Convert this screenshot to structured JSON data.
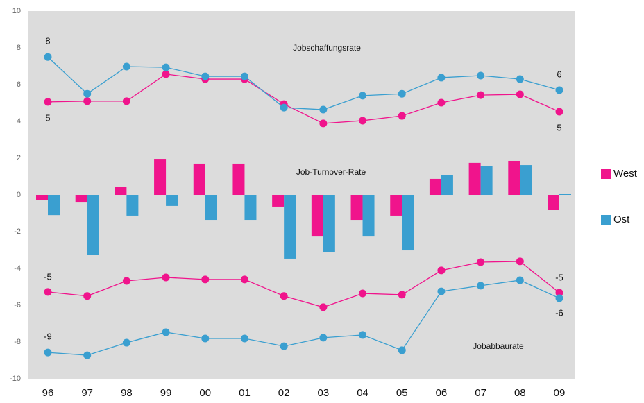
{
  "chart_data": {
    "type": "combo",
    "categories": [
      "96",
      "97",
      "98",
      "99",
      "00",
      "01",
      "02",
      "03",
      "04",
      "05",
      "06",
      "07",
      "08",
      "09"
    ],
    "ylim": [
      -10,
      10
    ],
    "yticks": [
      -10,
      -8,
      -6,
      -4,
      -2,
      0,
      2,
      4,
      6,
      8,
      10
    ],
    "grid": false,
    "annotations": [
      "Jobschaffungsrate",
      "Job-Turnover-Rate",
      "Jobabbaurate"
    ],
    "legend": "right",
    "series": [
      {
        "type": "bar",
        "name": "West",
        "color": "#f0148c",
        "values": [
          -0.3,
          -0.38,
          0.42,
          1.96,
          1.7,
          1.7,
          -0.64,
          -2.23,
          -1.36,
          -1.13,
          0.87,
          1.74,
          1.85,
          -0.83
        ]
      },
      {
        "type": "bar",
        "name": "Ost",
        "color": "#3a9fd0",
        "values": [
          -1.1,
          -3.28,
          -1.13,
          -0.6,
          -1.36,
          -1.36,
          -3.47,
          -3.13,
          -2.23,
          -3.02,
          1.09,
          1.55,
          1.62,
          0.04
        ]
      },
      {
        "type": "line",
        "color": "#f0148c",
        "values": [
          5.06,
          5.1,
          5.1,
          6.57,
          6.3,
          6.3,
          4.94,
          3.89,
          4.04,
          4.3,
          5.02,
          5.43,
          5.47,
          4.53
        ],
        "value_labels": [
          "5",
          null,
          null,
          null,
          null,
          null,
          null,
          null,
          null,
          null,
          null,
          null,
          null,
          "5"
        ]
      },
      {
        "type": "line",
        "color": "#3a9fd0",
        "values": [
          7.5,
          5.5,
          6.98,
          6.94,
          6.45,
          6.45,
          4.75,
          4.64,
          5.4,
          5.5,
          6.38,
          6.49,
          6.3,
          5.7
        ],
        "value_labels": [
          "8",
          null,
          null,
          null,
          null,
          null,
          null,
          null,
          null,
          null,
          null,
          null,
          null,
          "6"
        ]
      },
      {
        "type": "line",
        "color": "#f0148c",
        "values": [
          -5.28,
          -5.5,
          -4.68,
          -4.49,
          -4.6,
          -4.6,
          -5.5,
          -6.11,
          -5.36,
          -5.43,
          -4.11,
          -3.66,
          -3.62,
          -5.32
        ],
        "value_labels": [
          "-5",
          null,
          null,
          null,
          null,
          null,
          null,
          null,
          null,
          null,
          null,
          null,
          null,
          "-5"
        ]
      },
      {
        "type": "line",
        "color": "#3a9fd0",
        "values": [
          -8.57,
          -8.72,
          -8.04,
          -7.47,
          -7.81,
          -7.81,
          -8.23,
          -7.77,
          -7.62,
          -8.45,
          -5.25,
          -4.94,
          -4.64,
          -5.62
        ],
        "value_labels": [
          "-9",
          null,
          null,
          null,
          null,
          null,
          null,
          null,
          null,
          null,
          null,
          null,
          null,
          "-6"
        ]
      }
    ]
  }
}
